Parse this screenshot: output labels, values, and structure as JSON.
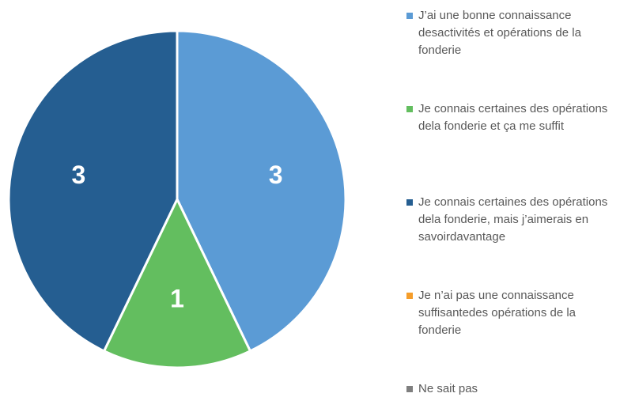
{
  "chart_data": {
    "type": "pie",
    "categories": [
      "J’ai une bonne connaissance desactivités et opérations de la fonderie",
      "Je connais certaines des opérations dela fonderie et ça me suffit",
      "Je connais certaines des opérations dela fonderie, mais j’aimerais en savoirdavantage",
      "Je n’ai pas une connaissance suffisantedes opérations de la fonderie",
      "Ne sait pas"
    ],
    "values": [
      3,
      1,
      3,
      0,
      0
    ],
    "colors": [
      "#5b9bd5",
      "#63be5f",
      "#255e91",
      "#f59d2a",
      "#7f7f7f"
    ]
  }
}
